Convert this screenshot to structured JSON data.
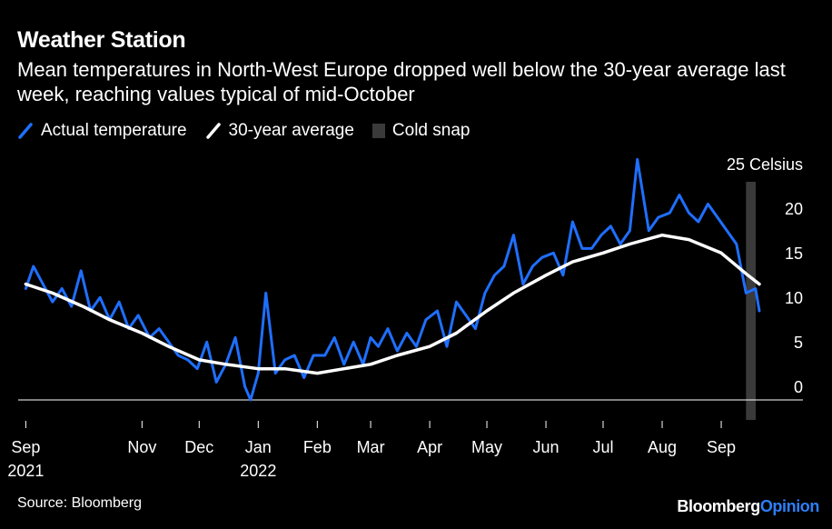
{
  "title": "Weather Station",
  "subtitle": "Mean temperatures in North-West Europe dropped well below the 30-year average last week, reaching values typical of mid-October",
  "legend": [
    {
      "label": "Actual temperature",
      "color": "#1f6fff",
      "kind": "line"
    },
    {
      "label": "30-year average",
      "color": "#ffffff",
      "kind": "line"
    },
    {
      "label": "Cold snap",
      "color": "#3a3a3a",
      "kind": "rect"
    }
  ],
  "source": "Source: Bloomberg",
  "brand": {
    "part1": "Bloomberg",
    "part2": "Opinion"
  },
  "chart_data": {
    "type": "line",
    "title": "Weather Station",
    "ylabel": "",
    "y_unit_label": "25 Celsius",
    "ylim": [
      -2,
      25
    ],
    "yticks": [
      0,
      5,
      10,
      15,
      20
    ],
    "ytick_labels": [
      "0",
      "5",
      "10",
      "15",
      "20"
    ],
    "xlim": [
      "2021-08-28",
      "2022-09-21"
    ],
    "xticks": [
      "2021-09-01",
      "2021-11-01",
      "2021-12-01",
      "2022-01-01",
      "2022-02-01",
      "2022-03-01",
      "2022-04-01",
      "2022-05-01",
      "2022-06-01",
      "2022-07-01",
      "2022-08-01",
      "2022-09-01"
    ],
    "xtick_labels": [
      "Sep",
      "Nov",
      "Dec",
      "Jan",
      "Feb",
      "Mar",
      "Apr",
      "May",
      "Jun",
      "Jul",
      "Aug",
      "Sep"
    ],
    "xtick_sublabels": [
      "2021",
      "",
      "",
      "2022",
      "",
      "",
      "",
      "",
      "",
      "",
      "",
      ""
    ],
    "grid": false,
    "legend_position": "top-left",
    "cold_snap": {
      "start": "2022-09-14",
      "end": "2022-09-27"
    },
    "series": [
      {
        "name": "Actual temperature",
        "color": "#1f6fff",
        "x": [
          "2021-09-01",
          "2021-09-05",
          "2021-09-10",
          "2021-09-15",
          "2021-09-20",
          "2021-09-25",
          "2021-09-30",
          "2021-10-05",
          "2021-10-10",
          "2021-10-15",
          "2021-10-20",
          "2021-10-25",
          "2021-10-30",
          "2021-11-05",
          "2021-11-10",
          "2021-11-15",
          "2021-11-20",
          "2021-11-25",
          "2021-11-30",
          "2021-12-05",
          "2021-12-10",
          "2021-12-15",
          "2021-12-20",
          "2021-12-25",
          "2021-12-28",
          "2022-01-01",
          "2022-01-05",
          "2022-01-10",
          "2022-01-15",
          "2022-01-20",
          "2022-01-25",
          "2022-01-30",
          "2022-02-05",
          "2022-02-10",
          "2022-02-15",
          "2022-02-20",
          "2022-02-25",
          "2022-03-01",
          "2022-03-05",
          "2022-03-10",
          "2022-03-15",
          "2022-03-20",
          "2022-03-25",
          "2022-03-30",
          "2022-04-05",
          "2022-04-10",
          "2022-04-15",
          "2022-04-20",
          "2022-04-25",
          "2022-04-30",
          "2022-05-05",
          "2022-05-10",
          "2022-05-15",
          "2022-05-20",
          "2022-05-25",
          "2022-05-30",
          "2022-06-05",
          "2022-06-10",
          "2022-06-15",
          "2022-06-20",
          "2022-06-25",
          "2022-06-30",
          "2022-07-05",
          "2022-07-10",
          "2022-07-15",
          "2022-07-19",
          "2022-07-25",
          "2022-07-30",
          "2022-08-05",
          "2022-08-10",
          "2022-08-15",
          "2022-08-20",
          "2022-08-25",
          "2022-08-30",
          "2022-09-04",
          "2022-09-09",
          "2022-09-14",
          "2022-09-19",
          "2022-09-21"
        ],
        "y": [
          12.5,
          15,
          13,
          11,
          12.5,
          10.5,
          14.5,
          10,
          11.5,
          9,
          11,
          8,
          9.5,
          7,
          8,
          6.5,
          5,
          4.5,
          3.5,
          6.5,
          2,
          4,
          7,
          1.5,
          0,
          3,
          12,
          3,
          4.5,
          5,
          2.5,
          5,
          5,
          7,
          4,
          6.5,
          4,
          7,
          6,
          8,
          5.5,
          7.5,
          6,
          9,
          10,
          6,
          11,
          9.5,
          8,
          12,
          14,
          15,
          18.5,
          13,
          15,
          16,
          16.5,
          14,
          20,
          17,
          17,
          18.5,
          19.5,
          17.5,
          19,
          27,
          19,
          20.5,
          21,
          23,
          21,
          20,
          22,
          20.5,
          19,
          17.5,
          12,
          12.5,
          10
        ]
      },
      {
        "name": "30-year average",
        "color": "#ffffff",
        "x": [
          "2021-09-01",
          "2021-09-15",
          "2021-10-01",
          "2021-10-15",
          "2021-11-01",
          "2021-11-15",
          "2021-12-01",
          "2021-12-15",
          "2022-01-01",
          "2022-01-15",
          "2022-02-01",
          "2022-02-15",
          "2022-03-01",
          "2022-03-15",
          "2022-04-01",
          "2022-04-15",
          "2022-05-01",
          "2022-05-15",
          "2022-06-01",
          "2022-06-15",
          "2022-07-01",
          "2022-07-15",
          "2022-08-01",
          "2022-08-15",
          "2022-09-01",
          "2022-09-15",
          "2022-09-21"
        ],
        "y": [
          13,
          12,
          10.5,
          9,
          7.5,
          6,
          4.5,
          4,
          3.5,
          3.5,
          3,
          3.5,
          4,
          5,
          6,
          7.5,
          10,
          12,
          14,
          15.5,
          16.5,
          17.5,
          18.5,
          18,
          16.5,
          14,
          13
        ]
      }
    ]
  }
}
